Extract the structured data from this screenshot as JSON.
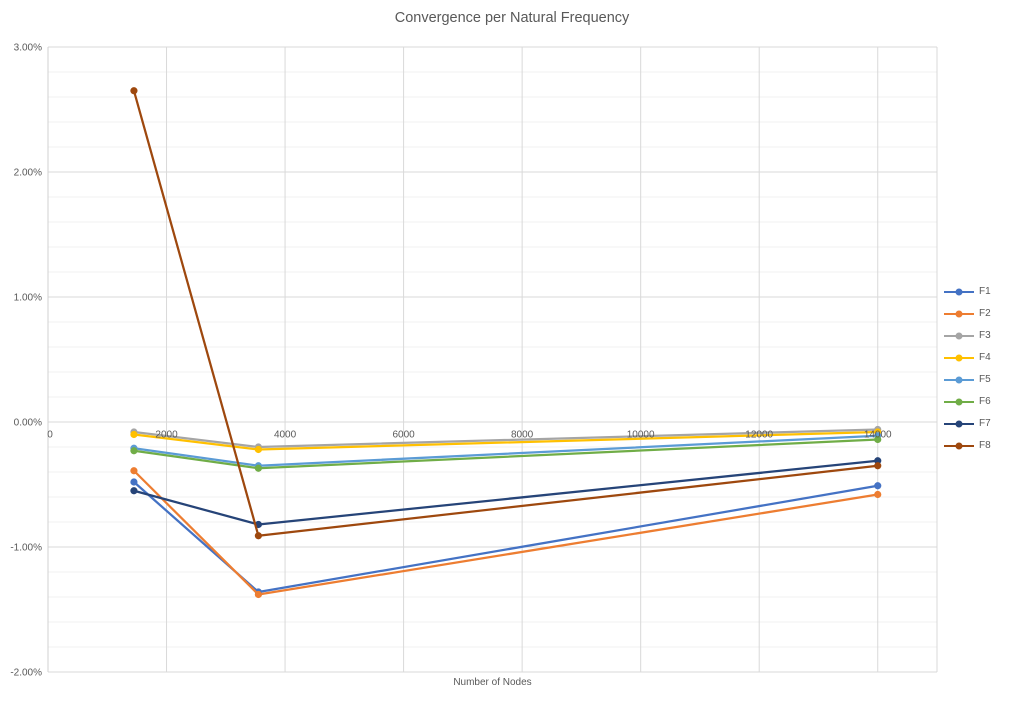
{
  "title": "Convergence per Natural Frequency",
  "x_axis": {
    "title": "Number of Nodes",
    "tick_labels": [
      "0",
      "2000",
      "4000",
      "6000",
      "8000",
      "10000",
      "12000",
      "14000"
    ],
    "tick_values": [
      0,
      2000,
      4000,
      6000,
      8000,
      10000,
      12000,
      14000
    ],
    "min": 0,
    "max": 15000
  },
  "y_axis": {
    "tick_labels": [
      "3.00%",
      "2.00%",
      "1.00%",
      "0.00%",
      "-1.00%",
      "-2.00%"
    ],
    "tick_values": [
      3,
      2,
      1,
      0,
      -1,
      -2
    ],
    "min": -2,
    "max": 3,
    "major_unit": 1,
    "minor_unit": 0.2,
    "format": "percent"
  },
  "legend": {
    "position": "right",
    "entries": [
      "F1",
      "F2",
      "F3",
      "F4",
      "F5",
      "F6",
      "F7",
      "F8"
    ]
  },
  "palette": {
    "text": "#595959",
    "gridline_major": "#D9D9D9",
    "gridline_minor": "#F1F1F1",
    "axis_line": "#D0D0D0",
    "background": "#FFFFFF"
  },
  "chart_data": {
    "type": "line",
    "title": "Convergence per Natural Frequency",
    "xlabel": "Number of Nodes",
    "ylabel": "",
    "units": "percent",
    "x": [
      1450,
      3550,
      14000
    ],
    "xlim": [
      0,
      15000
    ],
    "ylim": [
      -2,
      3
    ],
    "grid": {
      "major_horizontal": true,
      "minor_horizontal": true,
      "major_vertical": true
    },
    "legend_position": "right",
    "marker": "circle",
    "series": [
      {
        "name": "F1",
        "color": "#4472C4",
        "values": [
          -0.48,
          -1.36,
          -0.51
        ]
      },
      {
        "name": "F2",
        "color": "#ED7D31",
        "values": [
          -0.39,
          -1.38,
          -0.58
        ]
      },
      {
        "name": "F3",
        "color": "#A5A5A5",
        "values": [
          -0.08,
          -0.2,
          -0.06
        ]
      },
      {
        "name": "F4",
        "color": "#FFC000",
        "values": [
          -0.1,
          -0.22,
          -0.08
        ]
      },
      {
        "name": "F5",
        "color": "#5B9BD5",
        "values": [
          -0.21,
          -0.35,
          -0.11
        ]
      },
      {
        "name": "F6",
        "color": "#70AD47",
        "values": [
          -0.23,
          -0.37,
          -0.14
        ]
      },
      {
        "name": "F7",
        "color": "#264478",
        "values": [
          -0.55,
          -0.82,
          -0.31
        ]
      },
      {
        "name": "F8",
        "color": "#9E480E",
        "values": [
          2.65,
          -0.91,
          -0.35
        ]
      }
    ]
  }
}
